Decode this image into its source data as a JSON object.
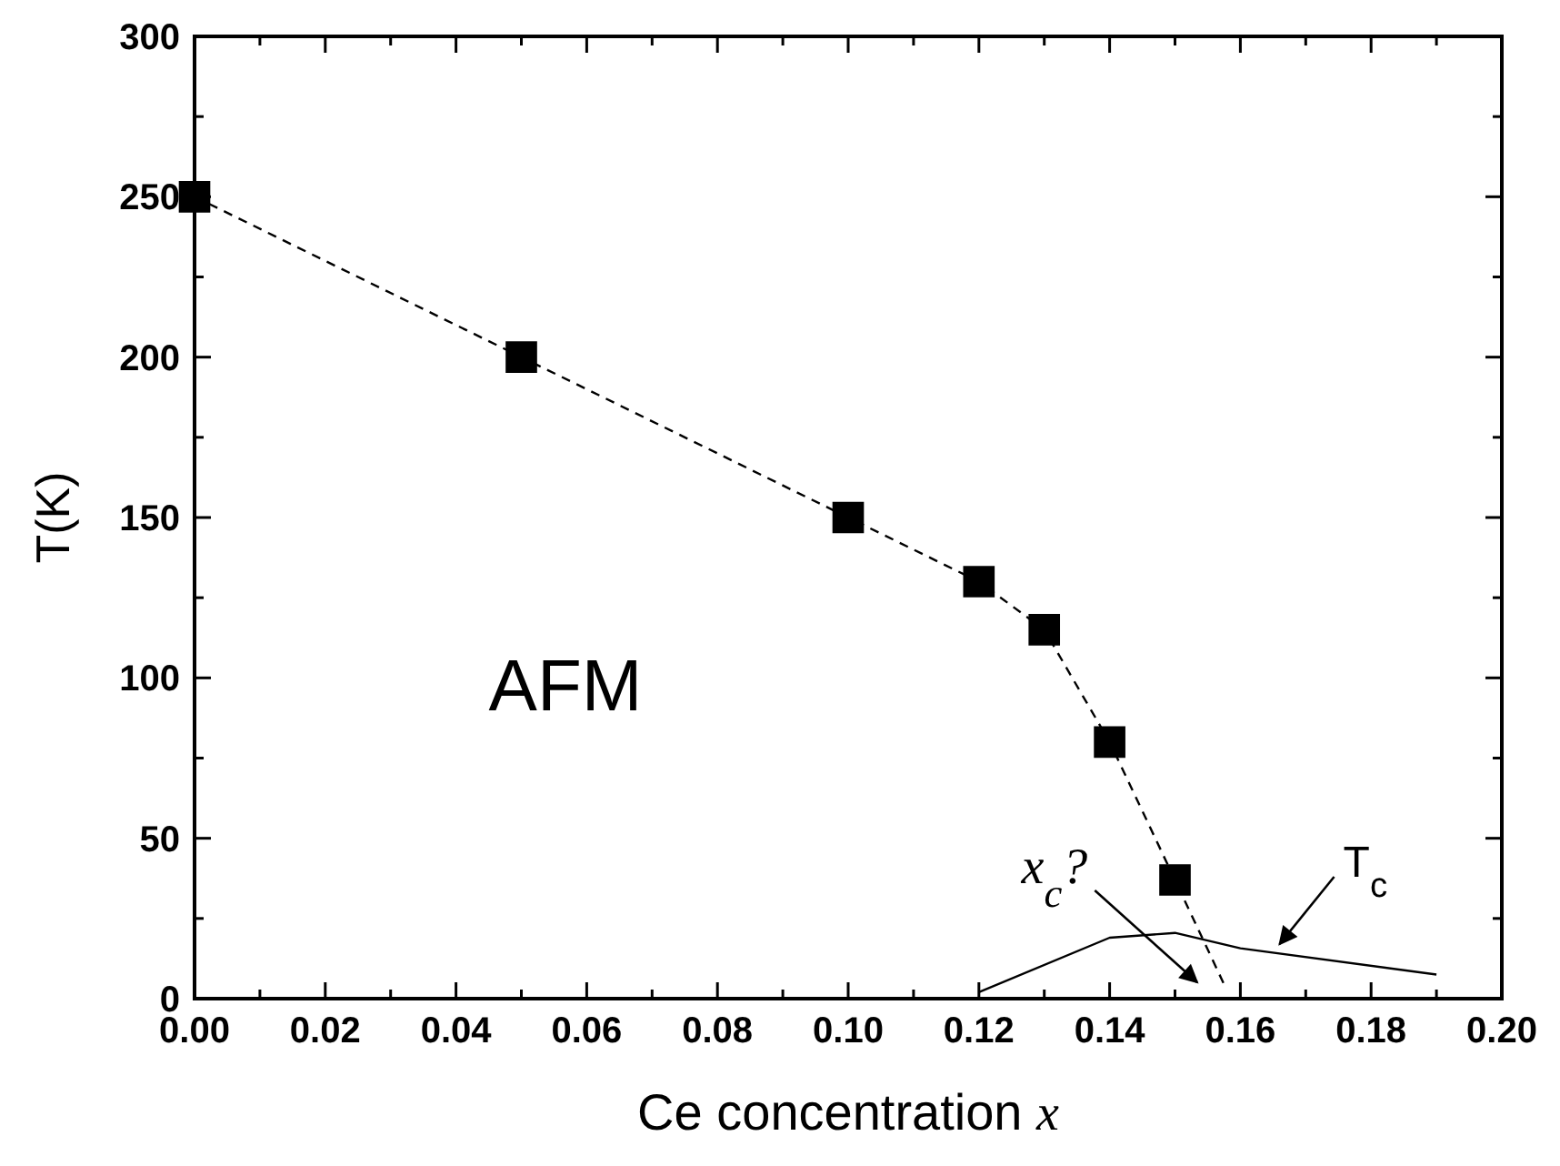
{
  "chart_data": {
    "type": "scatter",
    "xlabel": "Ce concentration x",
    "ylabel": "T(K)",
    "xlim": [
      0,
      0.2
    ],
    "ylim": [
      0,
      300
    ],
    "xticks": [
      {
        "value": 0,
        "label": "0.00"
      },
      {
        "value": 0.01,
        "label": null
      },
      {
        "value": 0.02,
        "label": "0.02"
      },
      {
        "value": 0.03,
        "label": null
      },
      {
        "value": 0.04,
        "label": "0.04"
      },
      {
        "value": 0.05,
        "label": null
      },
      {
        "value": 0.06,
        "label": "0.06"
      },
      {
        "value": 0.07,
        "label": null
      },
      {
        "value": 0.08,
        "label": "0.08"
      },
      {
        "value": 0.09,
        "label": null
      },
      {
        "value": 0.1,
        "label": "0.10"
      },
      {
        "value": 0.11,
        "label": null
      },
      {
        "value": 0.12,
        "label": "0.12"
      },
      {
        "value": 0.13,
        "label": null
      },
      {
        "value": 0.14,
        "label": "0.14"
      },
      {
        "value": 0.15,
        "label": null
      },
      {
        "value": 0.16,
        "label": "0.16"
      },
      {
        "value": 0.17,
        "label": null
      },
      {
        "value": 0.18,
        "label": "0.18"
      },
      {
        "value": 0.19,
        "label": null
      },
      {
        "value": 0.2,
        "label": "0.20"
      }
    ],
    "yticks": [
      0,
      {
        "value": 25,
        "label": null
      },
      50,
      {
        "value": 75,
        "label": null
      },
      100,
      {
        "value": 125,
        "label": null
      },
      150,
      {
        "value": 175,
        "label": null
      },
      200,
      {
        "value": 225,
        "label": null
      },
      250,
      {
        "value": 275,
        "label": null
      },
      300
    ],
    "grid": false,
    "series": [
      {
        "type": "line",
        "color": "#000000",
        "line_style": "dashed",
        "marker": "none",
        "x": [
          0,
          0.05,
          0.1,
          0.12,
          0.13,
          0.14,
          0.15,
          0.1575
        ],
        "values": [
          250,
          200,
          150,
          130,
          115,
          80,
          37,
          4.5
        ]
      },
      {
        "type": "line",
        "color": "#000000",
        "line_style": "solid",
        "marker": "none",
        "x": [
          0.12,
          0.14,
          0.15,
          0.16,
          0.19
        ],
        "values": [
          2,
          19,
          20.5,
          15.7,
          7.5
        ]
      },
      {
        "color": "#000000",
        "marker": "square",
        "x": [
          0,
          0.05,
          0.1,
          0.12,
          0.13,
          0.14,
          0.15
        ],
        "values": [
          250,
          200,
          150,
          130,
          115,
          80,
          37
        ]
      }
    ],
    "annotations": [
      "AFM",
      "x$_{c}$?",
      {
        "text": "T$_{c}$",
        "x": 0.166,
        "y": 17
      }
    ]
  }
}
